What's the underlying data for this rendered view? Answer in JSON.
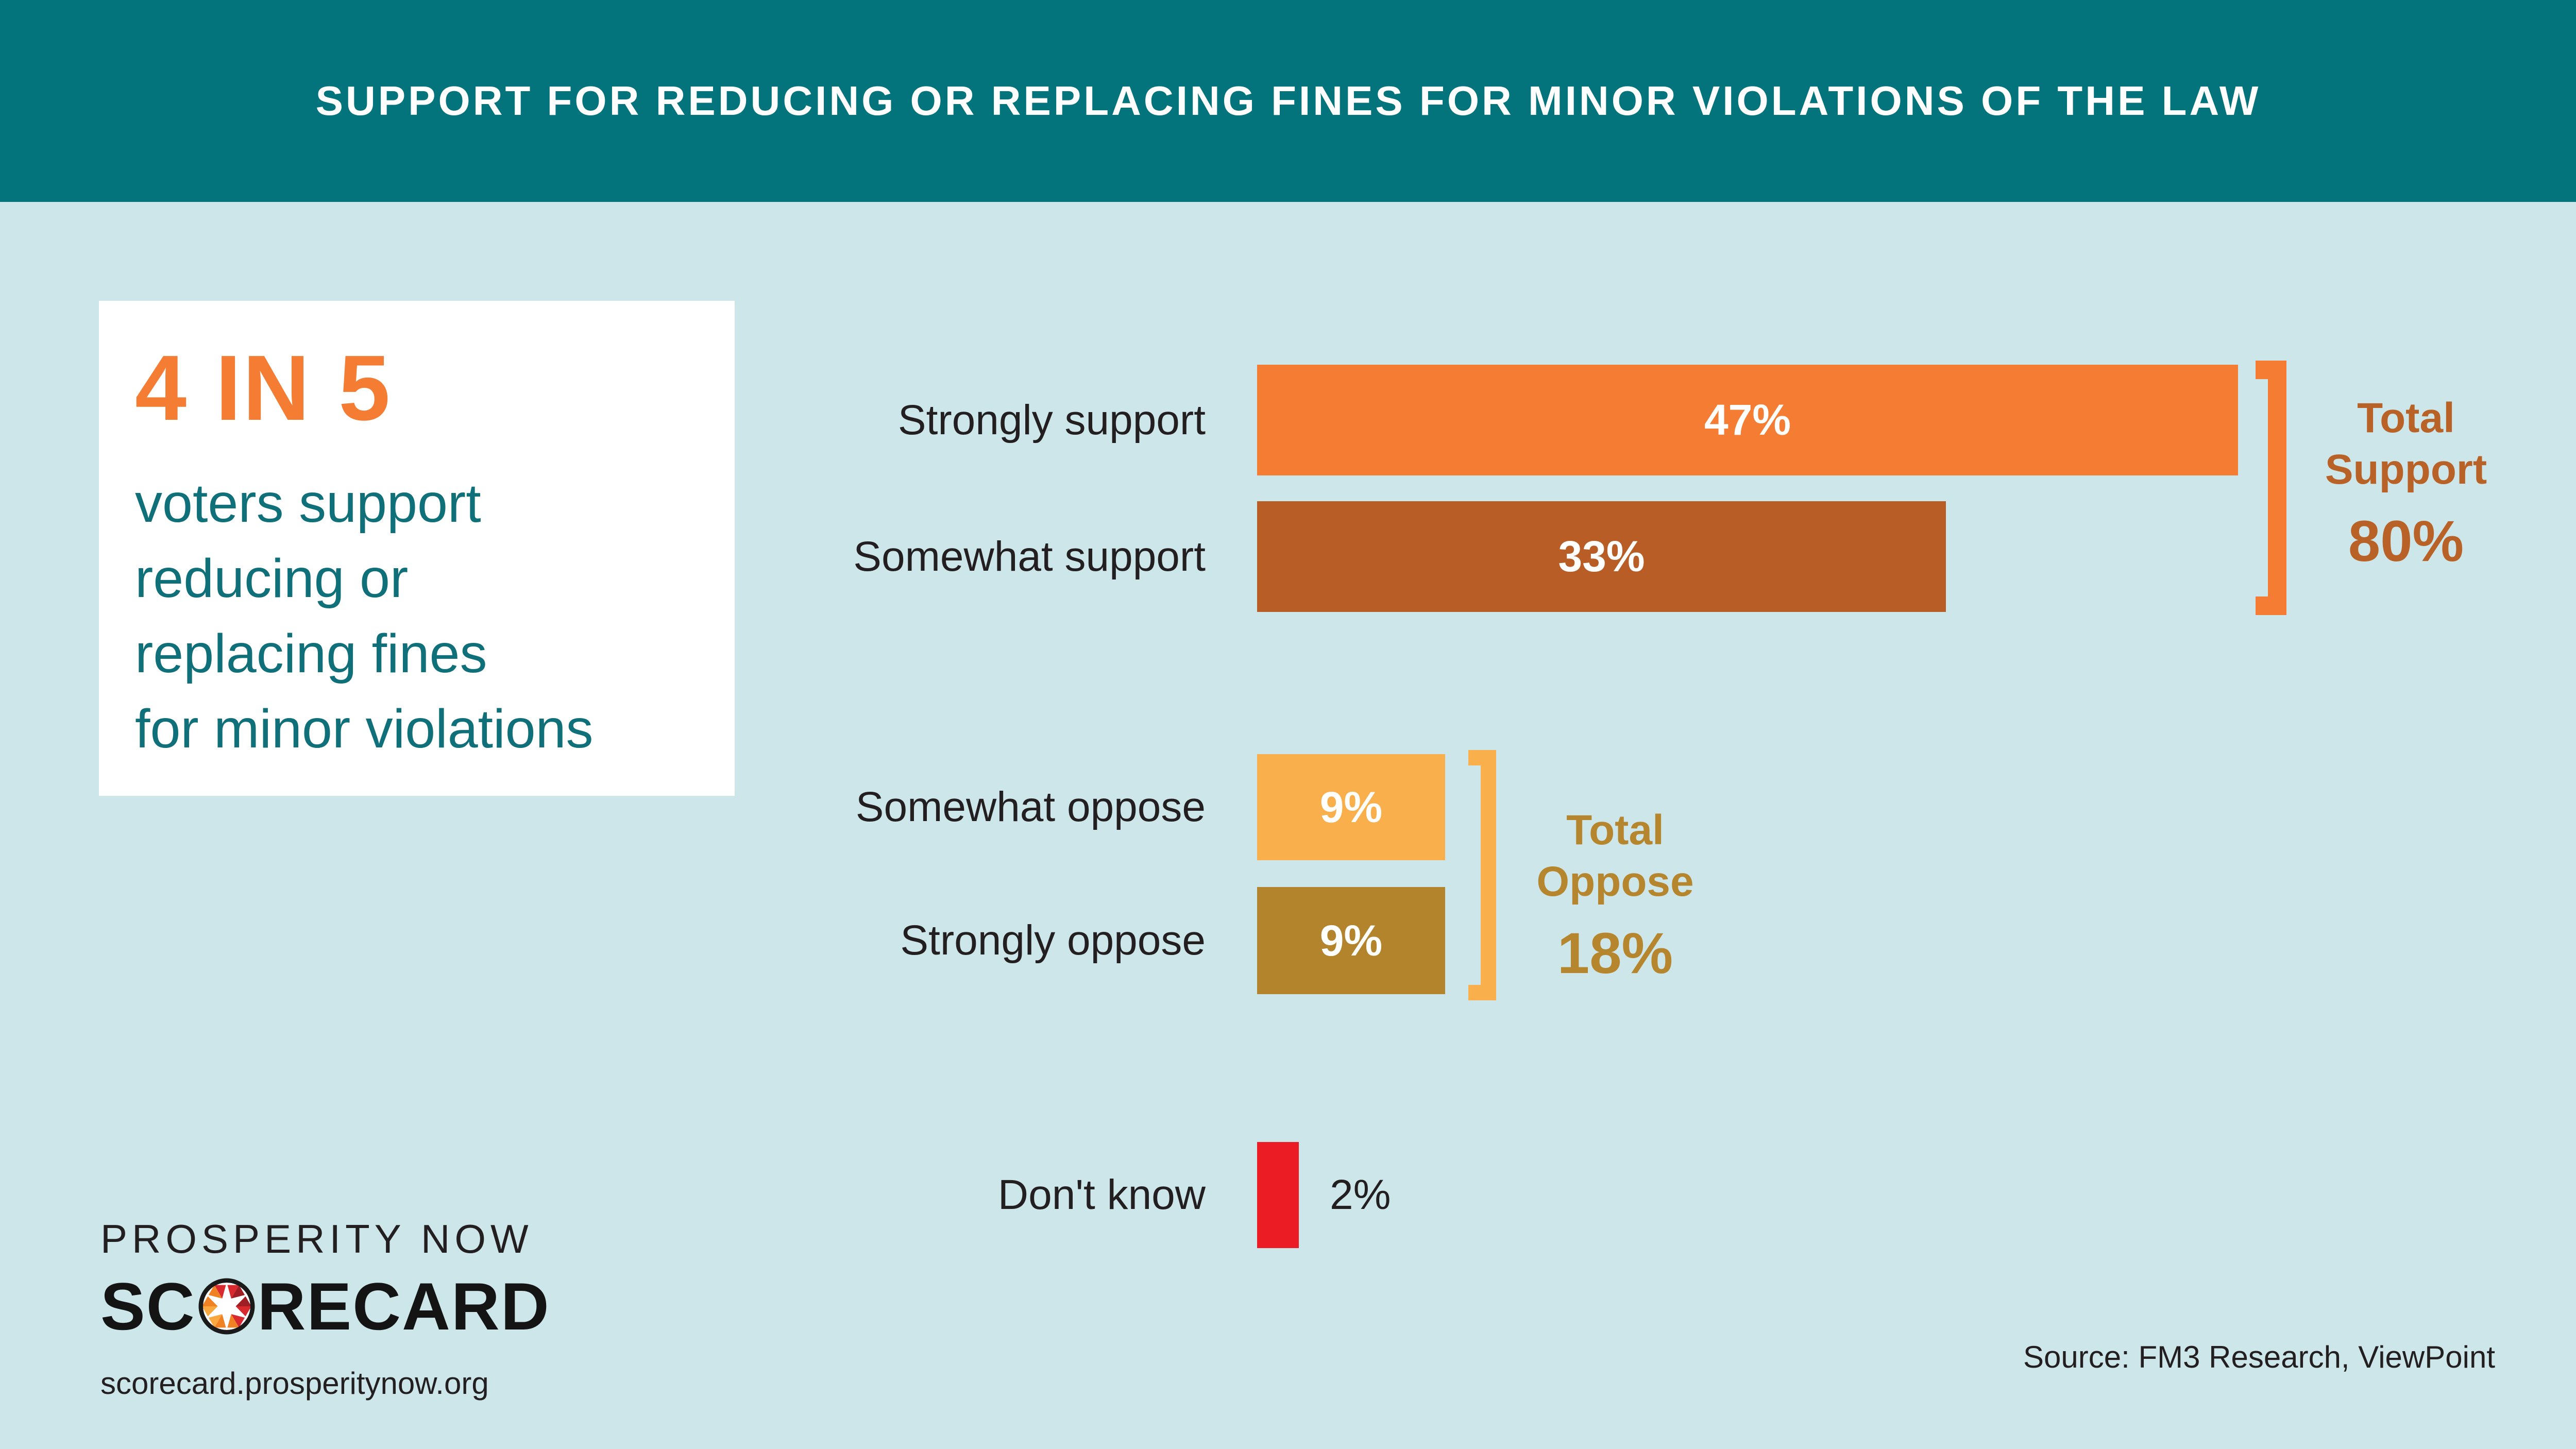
{
  "header": {
    "title": "SUPPORT FOR REDUCING OR REPLACING FINES FOR MINOR VIOLATIONS OF THE LAW"
  },
  "callout": {
    "headline": "4 IN 5",
    "body_lines": [
      "voters support",
      "reducing or",
      "replacing fines",
      "for minor violations"
    ]
  },
  "chart_data": {
    "type": "bar",
    "orientation": "horizontal",
    "title": "Support for reducing or replacing fines for minor violations of the law",
    "categories": [
      "Strongly support",
      "Somewhat support",
      "Somewhat oppose",
      "Strongly oppose",
      "Don't know"
    ],
    "values": [
      47,
      33,
      9,
      9,
      2
    ],
    "value_labels": [
      "47%",
      "33%",
      "9%",
      "9%",
      "2%"
    ],
    "bar_colors": [
      "#F47D33",
      "#B75D25",
      "#F9B04C",
      "#B3842C",
      "#EC1C24"
    ],
    "value_label_inside": [
      true,
      true,
      true,
      true,
      false
    ],
    "xlim": [
      0,
      50
    ],
    "grid": false,
    "legend": false,
    "annotations": [
      {
        "label": "Total Support",
        "value": "80%",
        "text_color": "#B96227",
        "bracket_color": "#F47D33",
        "spans": [
          "Strongly support",
          "Somewhat support"
        ]
      },
      {
        "label": "Total Oppose",
        "value": "18%",
        "text_color": "#B6862F",
        "bracket_color": "#F9B04C",
        "spans": [
          "Somewhat oppose",
          "Strongly oppose"
        ]
      }
    ]
  },
  "footer": {
    "brand_line1": "PROSPERITY NOW",
    "brand_line2": "SCORECARD",
    "brand_line2_pre_o": "SC",
    "brand_line2_post_o": "RECARD",
    "url": "scorecard.prosperitynow.org",
    "source": "Source: FM3 Research, ViewPoint"
  },
  "icons": {
    "scorecard_o": "star-pinwheel-o-icon"
  },
  "colors": {
    "header_background": "#04747C",
    "page_background": "#CDE6E9",
    "card_background": "#FFFFFF",
    "accent_orange": "#F47D33",
    "accent_brown": "#B75D25",
    "accent_amber": "#F9B04C",
    "accent_gold": "#B3842C",
    "accent_red": "#EC1C24",
    "teal_text": "#10707A",
    "label_text": "#231F20"
  }
}
